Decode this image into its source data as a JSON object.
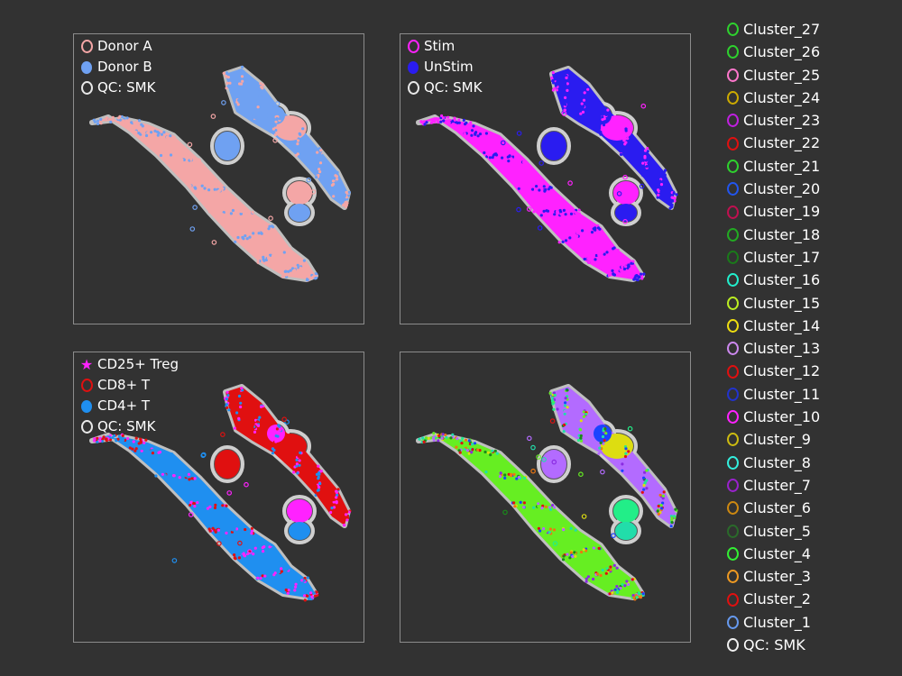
{
  "chart_data": [
    {
      "type": "scatter",
      "title": "",
      "legend": [
        {
          "label": "Donor A",
          "color": "#f4a6a6",
          "marker": "ring"
        },
        {
          "label": "Donor B",
          "color": "#6fa1f2",
          "marker": "dot"
        },
        {
          "label": "QC: SMK",
          "color": "#e8e8e8",
          "marker": "ring"
        }
      ],
      "legend_position": "top-left",
      "grid": false,
      "series_colors": [
        "#f4a6a6",
        "#6fa1f2"
      ]
    },
    {
      "type": "scatter",
      "title": "",
      "legend": [
        {
          "label": "Stim",
          "color": "#ff22ff",
          "marker": "ring"
        },
        {
          "label": "UnStim",
          "color": "#2a1cf0",
          "marker": "dot"
        },
        {
          "label": "QC: SMK",
          "color": "#e8e8e8",
          "marker": "ring"
        }
      ],
      "legend_position": "top-left",
      "grid": false,
      "series_colors": [
        "#ff22ff",
        "#2a1cf0"
      ]
    },
    {
      "type": "scatter",
      "title": "",
      "legend": [
        {
          "label": "CD25+ Treg",
          "color": "#ff22ff",
          "marker": "star"
        },
        {
          "label": "CD8+ T",
          "color": "#e01010",
          "marker": "ring"
        },
        {
          "label": "CD4+ T",
          "color": "#1f8ff0",
          "marker": "dot"
        },
        {
          "label": "QC: SMK",
          "color": "#e8e8e8",
          "marker": "ring"
        }
      ],
      "legend_position": "top-left",
      "grid": false,
      "series_colors": [
        "#1f8ff0",
        "#e01010",
        "#ff22ff"
      ]
    },
    {
      "type": "scatter",
      "title": "",
      "legend": [],
      "grid": false,
      "series_colors": [
        "#66ee22",
        "#b36bff",
        "#22ee88",
        "#22ddaa",
        "#dddd11",
        "#1a44ff",
        "#e01010",
        "#1a8a1a",
        "#8a2be2",
        "#ee7711"
      ]
    }
  ],
  "cluster_legend": [
    {
      "label": "Cluster_27",
      "color": "#2ed12e"
    },
    {
      "label": "Cluster_26",
      "color": "#2ed12e"
    },
    {
      "label": "Cluster_25",
      "color": "#ff77cc"
    },
    {
      "label": "Cluster_24",
      "color": "#ccaa00"
    },
    {
      "label": "Cluster_23",
      "color": "#c020e0"
    },
    {
      "label": "Cluster_22",
      "color": "#e01010"
    },
    {
      "label": "Cluster_21",
      "color": "#2ed12e"
    },
    {
      "label": "Cluster_20",
      "color": "#2255ee"
    },
    {
      "label": "Cluster_19",
      "color": "#c01050"
    },
    {
      "label": "Cluster_18",
      "color": "#22aa22"
    },
    {
      "label": "Cluster_17",
      "color": "#1a7a1a"
    },
    {
      "label": "Cluster_16",
      "color": "#22eecc"
    },
    {
      "label": "Cluster_15",
      "color": "#bbee22"
    },
    {
      "label": "Cluster_14",
      "color": "#eedd11"
    },
    {
      "label": "Cluster_13",
      "color": "#cc88ee"
    },
    {
      "label": "Cluster_12",
      "color": "#e01010"
    },
    {
      "label": "Cluster_11",
      "color": "#2233cc"
    },
    {
      "label": "Cluster_10",
      "color": "#ff22ff"
    },
    {
      "label": "Cluster_9",
      "color": "#ccbb11"
    },
    {
      "label": "Cluster_8",
      "color": "#33eedd"
    },
    {
      "label": "Cluster_7",
      "color": "#9922cc"
    },
    {
      "label": "Cluster_6",
      "color": "#cc8811"
    },
    {
      "label": "Cluster_5",
      "color": "#2a6a2a"
    },
    {
      "label": "Cluster_4",
      "color": "#33ee33"
    },
    {
      "label": "Cluster_3",
      "color": "#ee9922"
    },
    {
      "label": "Cluster_2",
      "color": "#e01010"
    },
    {
      "label": "Cluster_1",
      "color": "#6699ee"
    },
    {
      "label": "QC: SMK",
      "color": "#f0f0f0"
    }
  ]
}
